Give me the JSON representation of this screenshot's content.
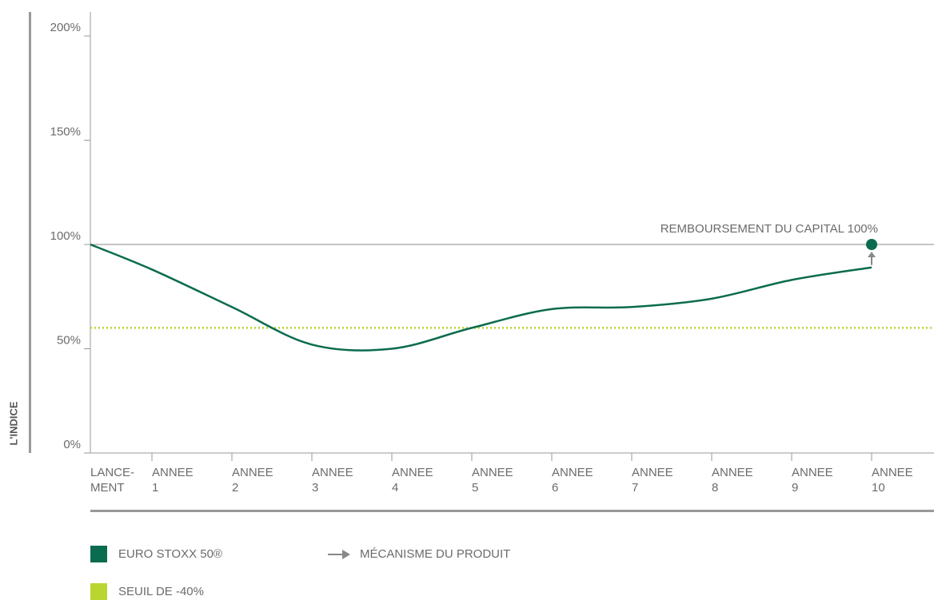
{
  "chart_data": {
    "type": "line",
    "y_label": "L'INDICE",
    "categories": [
      [
        "LANCE-",
        "MENT"
      ],
      [
        "ANNEE",
        "1"
      ],
      [
        "ANNEE",
        "2"
      ],
      [
        "ANNEE",
        "3"
      ],
      [
        "ANNEE",
        "4"
      ],
      [
        "ANNEE",
        "5"
      ],
      [
        "ANNEE",
        "6"
      ],
      [
        "ANNEE",
        "7"
      ],
      [
        "ANNEE",
        "8"
      ],
      [
        "ANNEE",
        "9"
      ],
      [
        "ANNEE",
        "10"
      ]
    ],
    "series": [
      {
        "name": "EURO STOXX 50®",
        "color": "#0b6b4f",
        "values": [
          100,
          88,
          70,
          52,
          50,
          60,
          69,
          70,
          74,
          83,
          89
        ]
      }
    ],
    "threshold": {
      "name": "SEUIL DE -40%",
      "value": 60,
      "color": "#b9d531"
    },
    "reference_line": 100,
    "annotation": {
      "text": "REMBOURSEMENT DU CAPITAL 100%",
      "value": 100,
      "category_index": 10,
      "color": "#0b6b4f"
    },
    "mechanism": {
      "name": "MÉCANISME DU PRODUIT",
      "color": "#888888"
    },
    "ylim": [
      0,
      200
    ],
    "yticks": [
      {
        "value": 0,
        "label": "0%"
      },
      {
        "value": 50,
        "label": "50%"
      },
      {
        "value": 100,
        "label": "100%"
      },
      {
        "value": 150,
        "label": "150%"
      },
      {
        "value": 200,
        "label": "200%"
      }
    ]
  }
}
